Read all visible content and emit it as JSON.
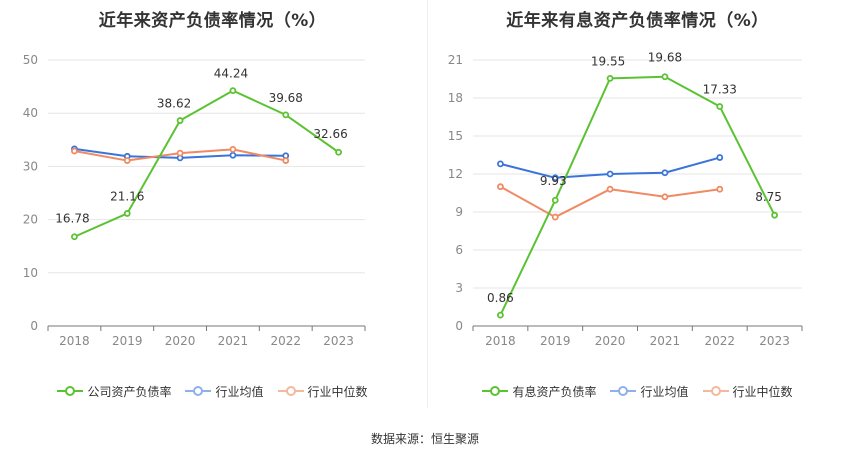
{
  "source_label": "数据来源：恒生聚源",
  "colors": {
    "company": "#5bc232",
    "avg": "#3b74d9",
    "median": "#ef8a64",
    "avg_legend": "#8fb0ea",
    "median_legend": "#f4b89e"
  },
  "chart_data": [
    {
      "type": "line",
      "title": "近年来资产负债率情况（%）",
      "x": [
        "2018",
        "2019",
        "2020",
        "2021",
        "2022",
        "2023"
      ],
      "ylim": [
        0,
        50
      ],
      "yticks": [
        0,
        10,
        20,
        30,
        40,
        50
      ],
      "grid": true,
      "legend_position": "bottom",
      "series": [
        {
          "name": "公司资产负债率",
          "values": [
            16.78,
            21.16,
            38.62,
            44.24,
            39.68,
            32.66
          ],
          "labels": [
            "16.78",
            "21.16",
            "38.62",
            "44.24",
            "39.68",
            "32.66"
          ]
        },
        {
          "name": "行业均值",
          "values": [
            33.3,
            31.9,
            31.6,
            32.1,
            32.0,
            null
          ]
        },
        {
          "name": "行业中位数",
          "values": [
            32.9,
            31.1,
            32.5,
            33.2,
            31.1,
            null
          ]
        }
      ]
    },
    {
      "type": "line",
      "title": "近年来有息资产负债率情况（%）",
      "x": [
        "2018",
        "2019",
        "2020",
        "2021",
        "2022",
        "2023"
      ],
      "ylim": [
        0,
        21
      ],
      "yticks": [
        0,
        3,
        6,
        9,
        12,
        15,
        18,
        21
      ],
      "grid": true,
      "legend_position": "bottom",
      "series": [
        {
          "name": "有息资产负债率",
          "values": [
            0.86,
            9.93,
            19.55,
            19.68,
            17.33,
            8.75
          ],
          "labels": [
            "0.86",
            "9.93",
            "19.55",
            "19.68",
            "17.33",
            "8.75"
          ]
        },
        {
          "name": "行业均值",
          "values": [
            12.8,
            11.7,
            12.0,
            12.1,
            13.3,
            null
          ]
        },
        {
          "name": "行业中位数",
          "values": [
            11.0,
            8.6,
            10.8,
            10.2,
            10.8,
            null
          ]
        }
      ]
    }
  ]
}
